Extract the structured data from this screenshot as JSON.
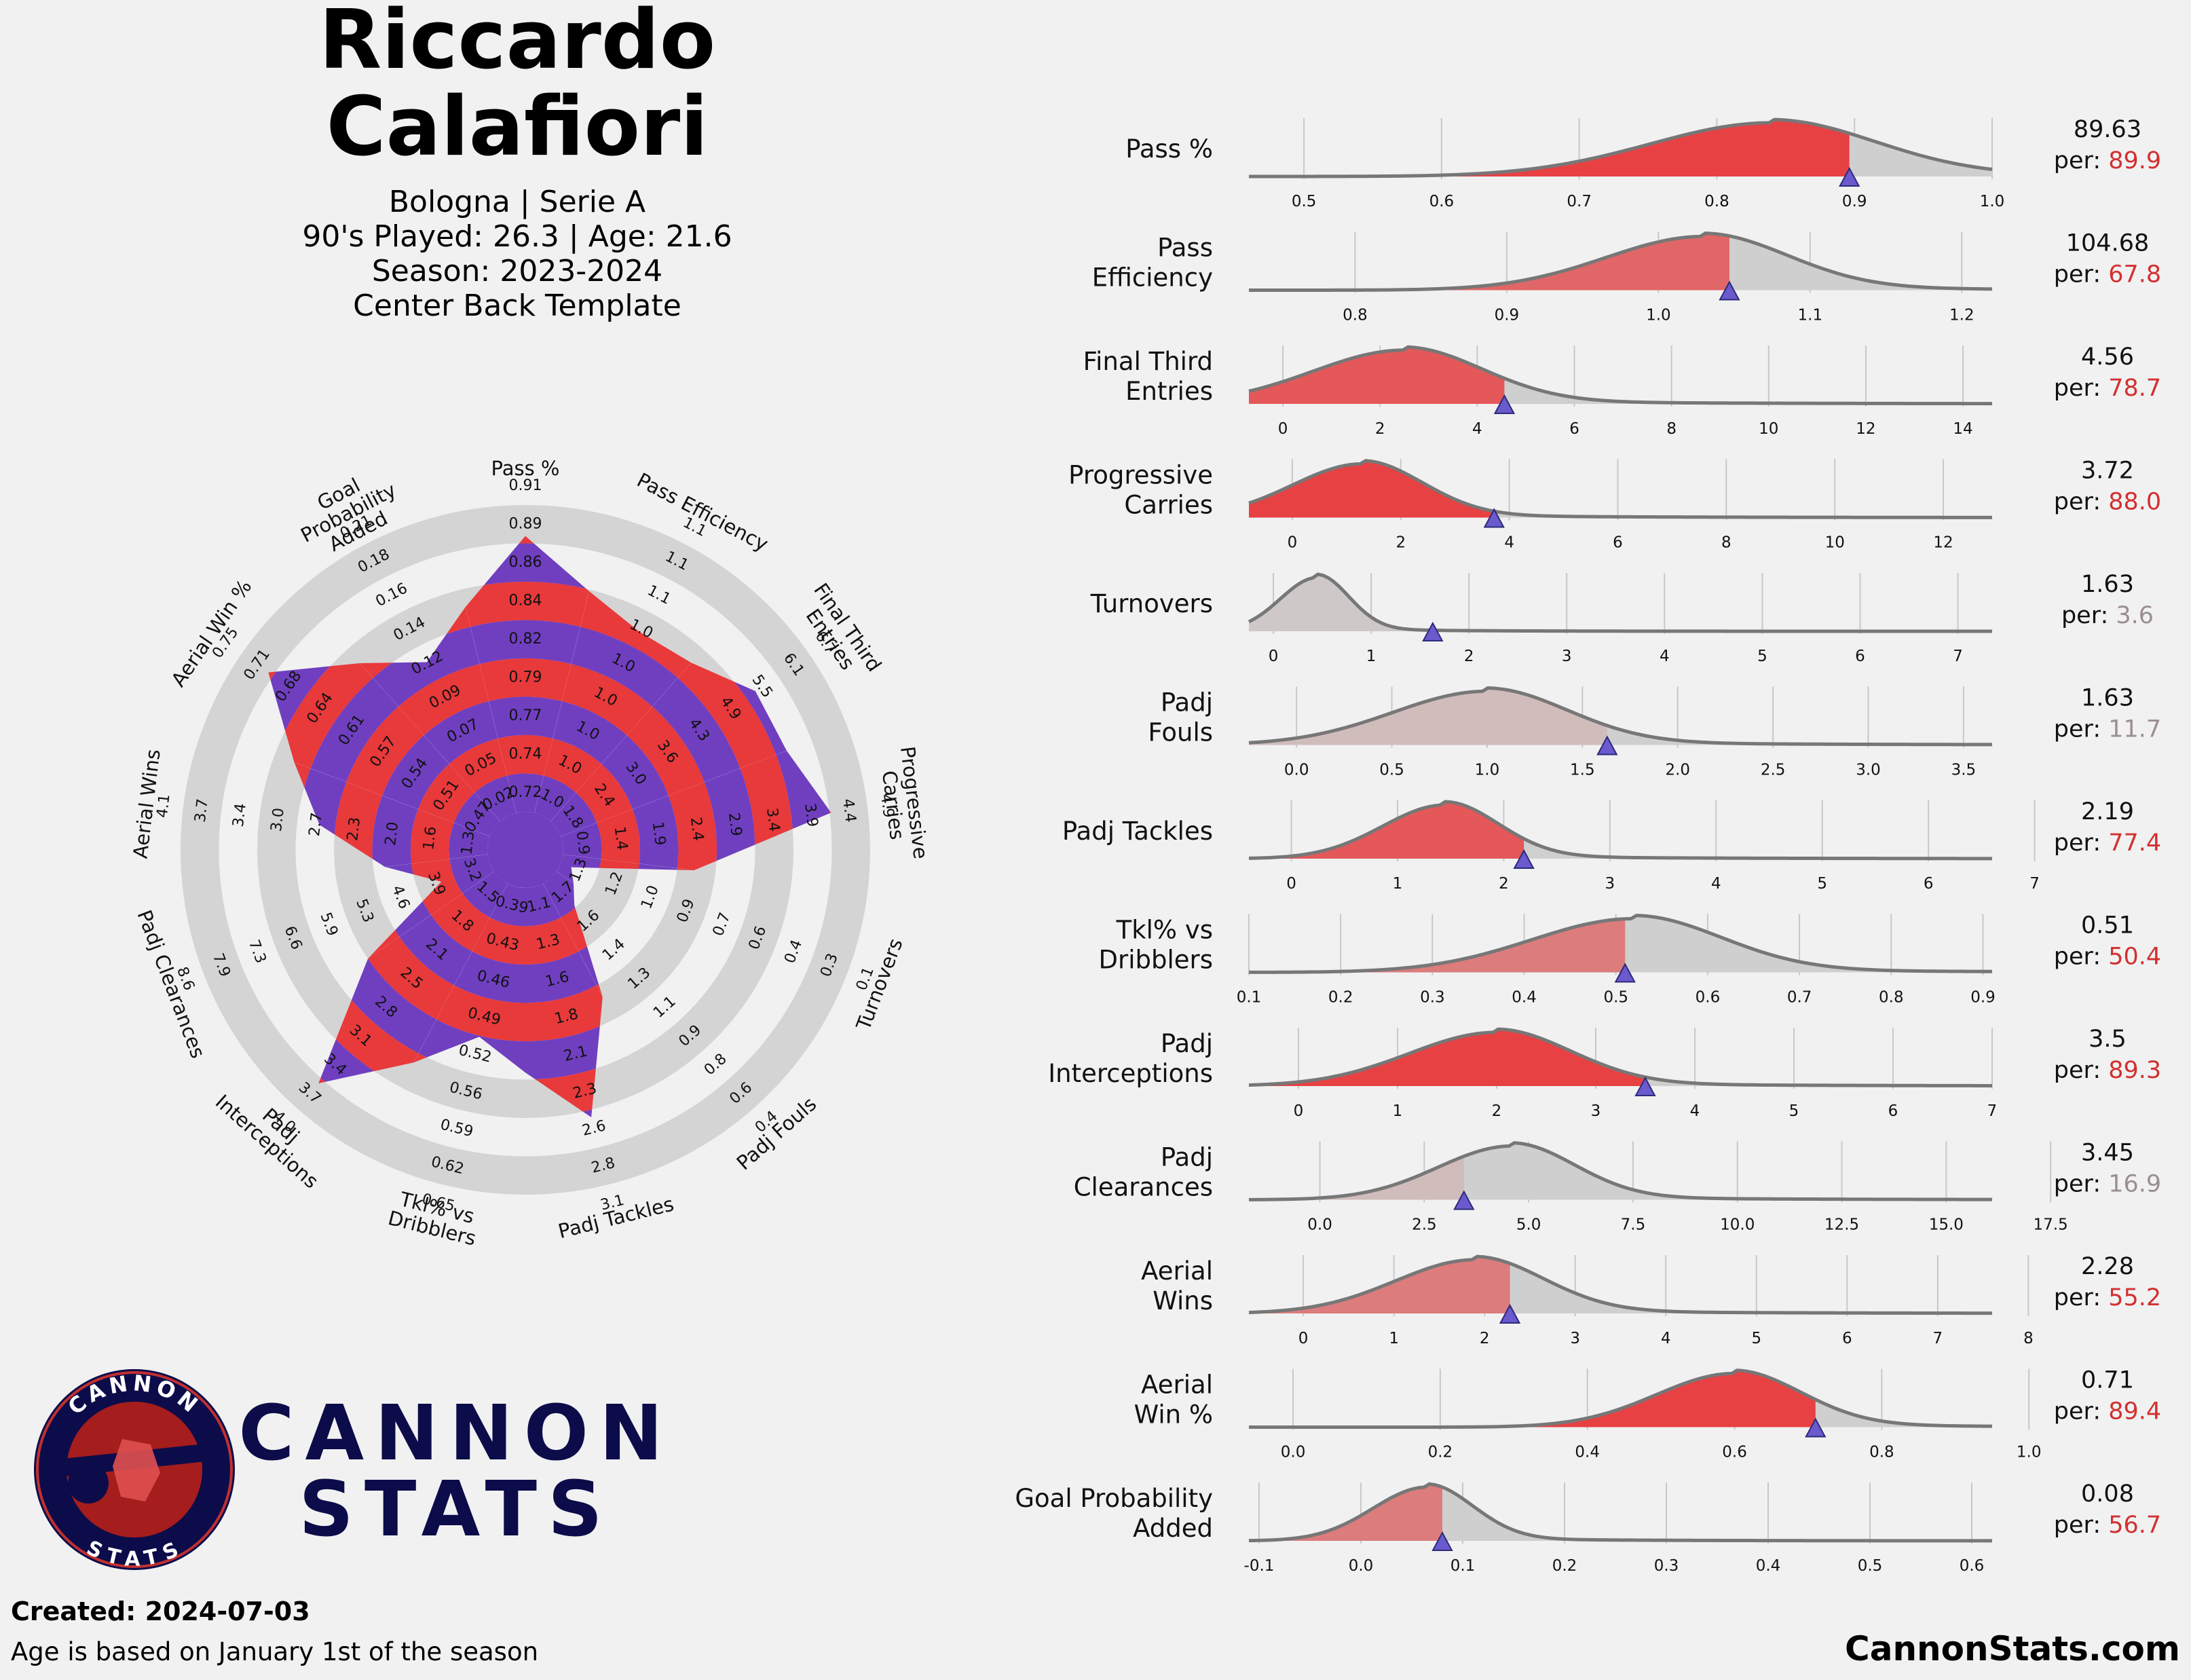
{
  "header": {
    "name_line1": "Riccardo",
    "name_line2": "Calafiori",
    "team_league": "Bologna | Serie A",
    "played_age": "90's Played: 26.3 | Age: 21.6",
    "season": "Season: 2023-2024",
    "template": "Center Back Template"
  },
  "footer": {
    "created": "Created: 2024-07-03",
    "note": "Age is based on January 1st of the season",
    "website": "CannonStats.com"
  },
  "logo": {
    "badge_top": "CANNON",
    "badge_bottom": "STATS",
    "word1": "CANNON",
    "word2": "STATS",
    "navy": "#0c0c4a",
    "maroon": "#9b1b1b"
  },
  "colors": {
    "red": "#e8393b",
    "purple": "#6f3fc0",
    "grey_ring": "#d4d4d4",
    "kde_grey": "#cfcfcf",
    "kde_line": "#777777",
    "marker": "#6a5acd",
    "per_red": "#d23030",
    "per_grey": "#9a8f8f"
  },
  "chart_data": [
    {
      "type": "radar",
      "categories": [
        "Pass %",
        "Pass Efficiency",
        "Final Third Entries",
        "Progressive Carries",
        "Turnovers",
        "Padj Fouls",
        "Padj Tackles",
        "Tkl% vs Dribblers",
        "Padj Interceptions",
        "Padj Clearances",
        "Aerial Wins",
        "Aerial Win %",
        "Goal Probability Added"
      ],
      "percentiles": [
        89.9,
        67.8,
        78.7,
        88.0,
        3.6,
        11.7,
        77.4,
        50.4,
        89.3,
        16.9,
        55.2,
        89.4,
        56.7
      ],
      "ring_ticks": [
        [
          "0.72",
          "0.74",
          "0.77",
          "0.79",
          "0.82",
          "0.84",
          "0.86",
          "0.89",
          "0.91"
        ],
        [
          "1.0",
          "1.0",
          "1.0",
          "1.0",
          "1.0",
          "1.0",
          "1.1",
          "1.1",
          "1.1"
        ],
        [
          "1.8",
          "2.4",
          "3.0",
          "3.6",
          "4.3",
          "4.9",
          "5.5",
          "6.1",
          "6.7"
        ],
        [
          "0.9",
          "1.4",
          "1.9",
          "2.4",
          "2.9",
          "3.4",
          "3.9",
          "4.4",
          "4.9"
        ],
        [
          "1.3",
          "1.2",
          "1.0",
          "0.9",
          "0.7",
          "0.6",
          "0.4",
          "0.3",
          "0.1"
        ],
        [
          "1.7",
          "1.6",
          "1.4",
          "1.3",
          "1.1",
          "0.9",
          "0.8",
          "0.6",
          "0.4"
        ],
        [
          "1.1",
          "1.3",
          "1.6",
          "1.8",
          "2.1",
          "2.3",
          "2.6",
          "2.8",
          "3.1"
        ],
        [
          "0.39",
          "0.43",
          "0.46",
          "0.49",
          "0.52",
          "0.56",
          "0.59",
          "0.62",
          "0.65"
        ],
        [
          "1.5",
          "1.8",
          "2.1",
          "2.5",
          "2.8",
          "3.1",
          "3.4",
          "3.7",
          "4.0"
        ],
        [
          "3.2",
          "3.9",
          "4.6",
          "5.3",
          "5.9",
          "6.6",
          "7.3",
          "7.9",
          "8.6"
        ],
        [
          "1.3",
          "1.6",
          "2.0",
          "2.3",
          "2.7",
          "3.0",
          "3.4",
          "3.7",
          "4.1"
        ],
        [
          "0.47",
          "0.51",
          "0.54",
          "0.57",
          "0.61",
          "0.64",
          "0.68",
          "0.71",
          "0.75"
        ],
        [
          "0.02",
          "0.05",
          "0.07",
          "0.09",
          "0.12",
          "0.14",
          "0.16",
          "0.18",
          "0.21"
        ]
      ]
    },
    {
      "type": "density",
      "metrics": [
        {
          "label": "Pass %",
          "value": "89.63",
          "per": "89.9",
          "x": 0.8963,
          "xlim": [
            0.46,
            1.0
          ],
          "ticks": [
            "0.5",
            "0.6",
            "0.7",
            "0.8",
            "0.9",
            "1.0"
          ],
          "peak": 0.84,
          "spread": 0.075,
          "per_color": "red",
          "fill_alpha": 0.95
        },
        {
          "label": "Pass Efficiency",
          "value": "104.68",
          "per": "67.8",
          "x": 1.0468,
          "xlim": [
            0.73,
            1.22
          ],
          "ticks": [
            "0.8",
            "0.9",
            "1.0",
            "1.1",
            "1.2"
          ],
          "peak": 1.03,
          "spread": 0.055,
          "per_color": "red",
          "fill_alpha": 0.7
        },
        {
          "label": "Final Third Entries",
          "value": "4.56",
          "per": "78.7",
          "x": 4.56,
          "xlim": [
            -0.7,
            14.6
          ],
          "ticks": [
            "0",
            "2",
            "4",
            "6",
            "8",
            "10",
            "12",
            "14"
          ],
          "peak": 2.5,
          "spread": 1.6,
          "per_color": "red",
          "fill_alpha": 0.8
        },
        {
          "label": "Progressive Carries",
          "value": "3.72",
          "per": "88.0",
          "x": 3.72,
          "xlim": [
            -0.8,
            12.9
          ],
          "ticks": [
            "0",
            "2",
            "4",
            "6",
            "8",
            "10",
            "12"
          ],
          "peak": 1.3,
          "spread": 1.1,
          "per_color": "red",
          "fill_alpha": 0.95
        },
        {
          "label": "Turnovers",
          "value": "1.63",
          "per": "3.6",
          "x": 1.63,
          "xlim": [
            -0.25,
            7.35
          ],
          "ticks": [
            "0",
            "1",
            "2",
            "3",
            "4",
            "5",
            "6",
            "7"
          ],
          "peak": 0.45,
          "spread": 0.32,
          "per_color": "grey",
          "fill_alpha": 0.04
        },
        {
          "label": "Padj Fouls",
          "value": "1.63",
          "per": "11.7",
          "x": 1.63,
          "xlim": [
            -0.25,
            3.65
          ],
          "ticks": [
            "0.0",
            "0.5",
            "1.0",
            "1.5",
            "2.0",
            "2.5",
            "3.0",
            "3.5"
          ],
          "peak": 1.0,
          "spread": 0.42,
          "per_color": "grey",
          "fill_alpha": 0.12
        },
        {
          "label": "Padj Tackles",
          "value": "2.19",
          "per": "77.4",
          "x": 2.19,
          "xlim": [
            -0.4,
            6.6
          ],
          "ticks": [
            "0",
            "1",
            "2",
            "3",
            "4",
            "5",
            "6",
            "7"
          ],
          "peak": 1.45,
          "spread": 0.5,
          "per_color": "red",
          "fill_alpha": 0.8
        },
        {
          "label": "Tkl% vs Dribblers",
          "value": "0.51",
          "per": "50.4",
          "x": 0.51,
          "xlim": [
            0.1,
            0.91
          ],
          "ticks": [
            "0.1",
            "0.2",
            "0.3",
            "0.4",
            "0.5",
            "0.6",
            "0.7",
            "0.8",
            "0.9"
          ],
          "peak": 0.52,
          "spread": 0.095,
          "per_color": "red",
          "fill_alpha": 0.55
        },
        {
          "label": "Padj Interceptions",
          "value": "3.5",
          "per": "89.3",
          "x": 3.5,
          "xlim": [
            -0.5,
            7.0
          ],
          "ticks": [
            "0",
            "1",
            "2",
            "3",
            "4",
            "5",
            "6",
            "7"
          ],
          "peak": 2.0,
          "spread": 0.75,
          "per_color": "red",
          "fill_alpha": 0.95
        },
        {
          "label": "Padj Clearances",
          "value": "3.45",
          "per": "16.9",
          "x": 3.45,
          "xlim": [
            -1.7,
            16.1
          ],
          "ticks": [
            "0.0",
            "2.5",
            "5.0",
            "7.5",
            "10.0",
            "12.5",
            "15.0",
            "17.5"
          ],
          "peak": 4.6,
          "spread": 1.5,
          "per_color": "grey",
          "fill_alpha": 0.12
        },
        {
          "label": "Aerial Wins",
          "value": "2.28",
          "per": "55.2",
          "x": 2.28,
          "xlim": [
            -0.6,
            7.6
          ],
          "ticks": [
            "0",
            "1",
            "2",
            "3",
            "4",
            "5",
            "6",
            "7",
            "8"
          ],
          "peak": 1.9,
          "spread": 0.75,
          "per_color": "red",
          "fill_alpha": 0.55
        },
        {
          "label": "Aerial Win %",
          "value": "0.71",
          "per": "89.4",
          "x": 0.71,
          "xlim": [
            -0.06,
            0.95
          ],
          "ticks": [
            "0.0",
            "0.2",
            "0.4",
            "0.6",
            "0.8",
            "1.0"
          ],
          "peak": 0.6,
          "spread": 0.09,
          "per_color": "red",
          "fill_alpha": 0.95
        },
        {
          "label": "Goal Probability Added",
          "value": "0.08",
          "per": "56.7",
          "x": 0.08,
          "xlim": [
            -0.11,
            0.62
          ],
          "ticks": [
            "-0.1",
            "0.0",
            "0.1",
            "0.2",
            "0.3",
            "0.4",
            "0.5",
            "0.6"
          ],
          "peak": 0.065,
          "spread": 0.045,
          "per_color": "red",
          "fill_alpha": 0.55
        }
      ]
    }
  ]
}
